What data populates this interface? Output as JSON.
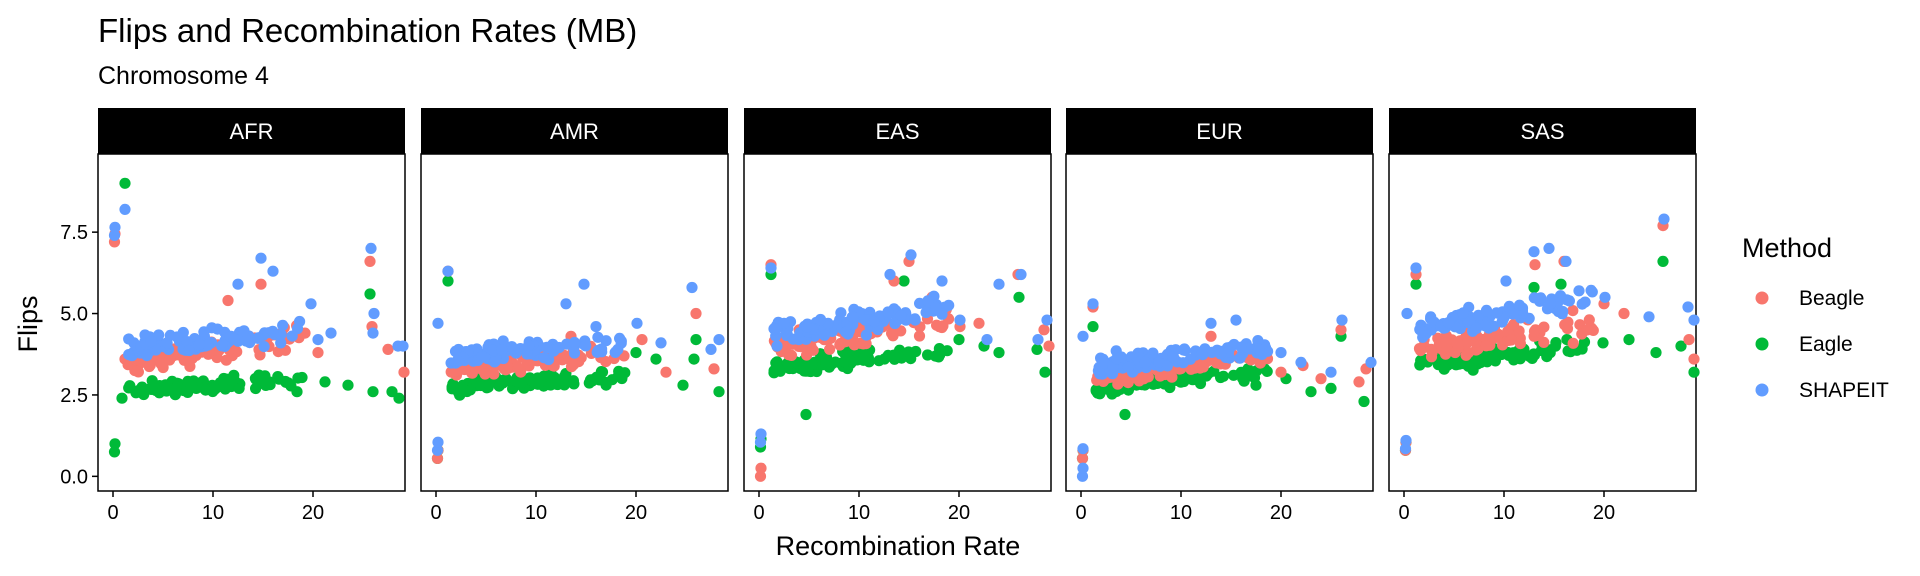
{
  "chart_data": {
    "type": "scatter",
    "title": "Flips and Recombination Rates (MB)",
    "subtitle": "Chromosome 4",
    "xlabel": "Recombination Rate",
    "ylabel": "Flips",
    "xlim": [
      -1.5,
      29.2
    ],
    "ylim": [
      -0.45,
      9.9
    ],
    "x_ticks": [
      0,
      10,
      20
    ],
    "x_tick_labels": [
      "0",
      "10",
      "20"
    ],
    "y_ticks": [
      0,
      2.5,
      5,
      7.5
    ],
    "y_tick_labels": [
      "0.0",
      "2.5",
      "5.0",
      "7.5"
    ],
    "grid": false,
    "legend_position": "right",
    "legend_title": "Method",
    "facets": [
      "AFR",
      "AMR",
      "EAS",
      "EUR",
      "SAS"
    ],
    "series": [
      {
        "name": "Beagle",
        "color": "#F8766D"
      },
      {
        "name": "Eagle",
        "color": "#00BA38"
      },
      {
        "name": "SHAPEIT",
        "color": "#619CFF"
      }
    ],
    "facet_params": {
      "AFR": {
        "Beagle": {
          "base": 3.4,
          "slope": 0.05,
          "spread": 0.35,
          "lowpt": 7.2,
          "extra": [
            [
              1.2,
              3.6
            ],
            [
              11.5,
              5.4
            ],
            [
              14.8,
              5.9
            ],
            [
              25.7,
              6.6
            ],
            [
              25.9,
              4.6
            ],
            [
              29.1,
              3.2
            ],
            [
              27.5,
              3.9
            ],
            [
              20.5,
              3.8
            ],
            [
              19.2,
              4.4
            ]
          ]
        },
        "Eagle": {
          "base": 2.6,
          "slope": 0.02,
          "spread": 0.22,
          "lowpt": 0.75,
          "extra": [
            [
              1.2,
              9.0
            ],
            [
              0.9,
              2.4
            ],
            [
              25.7,
              5.6
            ],
            [
              27.9,
              2.6
            ],
            [
              28.6,
              2.4
            ],
            [
              23.5,
              2.8
            ],
            [
              26.0,
              2.6
            ],
            [
              21.2,
              2.9
            ],
            [
              18.4,
              2.6
            ]
          ]
        },
        "SHAPEIT": {
          "base": 3.9,
          "slope": 0.03,
          "spread": 0.35,
          "lowpt": 7.4,
          "extra": [
            [
              1.2,
              8.2
            ],
            [
              12.5,
              5.9
            ],
            [
              14.8,
              6.7
            ],
            [
              16.0,
              6.3
            ],
            [
              25.8,
              7.0
            ],
            [
              26.1,
              5.0
            ],
            [
              26.0,
              4.4
            ],
            [
              28.5,
              4.0
            ],
            [
              29.0,
              4.0
            ],
            [
              20.5,
              4.2
            ],
            [
              21.8,
              4.4
            ],
            [
              19.8,
              5.3
            ]
          ]
        }
      },
      "AMR": {
        "Beagle": {
          "base": 3.2,
          "slope": 0.03,
          "spread": 0.3,
          "lowpt": 0.55,
          "extra": [
            [
              1.2,
              6.3
            ],
            [
              26.0,
              5.0
            ],
            [
              27.8,
              3.3
            ],
            [
              23.0,
              3.2
            ],
            [
              20.6,
              4.2
            ],
            [
              18.8,
              3.7
            ],
            [
              13.5,
              4.3
            ]
          ]
        },
        "Eagle": {
          "base": 2.7,
          "slope": 0.02,
          "spread": 0.22,
          "lowpt": 0.55,
          "extra": [
            [
              1.2,
              6.0
            ],
            [
              26.0,
              4.2
            ],
            [
              28.3,
              2.6
            ],
            [
              24.7,
              2.8
            ],
            [
              20.0,
              3.8
            ],
            [
              22.0,
              3.6
            ],
            [
              25.8,
              3.6
            ]
          ]
        },
        "SHAPEIT": {
          "base": 3.7,
          "slope": 0.02,
          "spread": 0.3,
          "lowpt": 0.8,
          "extra": [
            [
              1.2,
              6.3
            ],
            [
              0.2,
              4.7
            ],
            [
              14.8,
              5.9
            ],
            [
              13.0,
              5.3
            ],
            [
              25.6,
              5.8
            ],
            [
              28.3,
              4.2
            ],
            [
              20.1,
              4.7
            ],
            [
              22.5,
              4.1
            ],
            [
              27.5,
              3.9
            ],
            [
              16.0,
              4.6
            ]
          ]
        }
      },
      "EAS": {
        "Beagle": {
          "base": 3.9,
          "slope": 0.05,
          "spread": 0.35,
          "lowpt": 0.0,
          "extra": [
            [
              1.2,
              6.5
            ],
            [
              15.0,
              6.6
            ],
            [
              13.5,
              6.0
            ],
            [
              25.9,
              6.2
            ],
            [
              17.3,
              5.5
            ],
            [
              20.1,
              4.6
            ],
            [
              22.0,
              4.7
            ],
            [
              28.5,
              4.5
            ],
            [
              29.0,
              4.0
            ]
          ]
        },
        "Eagle": {
          "base": 3.3,
          "slope": 0.03,
          "spread": 0.25,
          "lowpt": 0.9,
          "extra": [
            [
              1.2,
              6.2
            ],
            [
              14.5,
              6.0
            ],
            [
              4.7,
              1.9
            ],
            [
              26.0,
              5.5
            ],
            [
              28.6,
              3.2
            ],
            [
              27.8,
              3.9
            ],
            [
              24.0,
              3.8
            ],
            [
              22.5,
              4.0
            ],
            [
              20.0,
              4.2
            ]
          ]
        },
        "SHAPEIT": {
          "base": 4.3,
          "slope": 0.05,
          "spread": 0.4,
          "lowpt": 1.05,
          "extra": [
            [
              1.2,
              6.4
            ],
            [
              15.2,
              6.8
            ],
            [
              13.1,
              6.2
            ],
            [
              26.2,
              6.2
            ],
            [
              24.0,
              5.9
            ],
            [
              18.3,
              6.0
            ],
            [
              20.1,
              4.8
            ],
            [
              28.8,
              4.8
            ],
            [
              27.9,
              4.2
            ],
            [
              22.8,
              4.2
            ]
          ]
        }
      },
      "EUR": {
        "Beagle": {
          "base": 3.0,
          "slope": 0.04,
          "spread": 0.27,
          "lowpt": 0.55,
          "extra": [
            [
              1.2,
              5.2
            ],
            [
              13.0,
              4.3
            ],
            [
              14.8,
              3.9
            ],
            [
              26.0,
              4.5
            ],
            [
              28.5,
              3.3
            ],
            [
              27.8,
              2.9
            ],
            [
              20.0,
              3.2
            ],
            [
              22.2,
              3.4
            ],
            [
              24.0,
              3.0
            ]
          ]
        },
        "Eagle": {
          "base": 2.7,
          "slope": 0.03,
          "spread": 0.22,
          "lowpt": 0.55,
          "extra": [
            [
              1.2,
              4.6
            ],
            [
              4.4,
              1.9
            ],
            [
              26.0,
              4.3
            ],
            [
              28.3,
              2.3
            ],
            [
              23.0,
              2.6
            ],
            [
              25.0,
              2.7
            ],
            [
              20.5,
              3.0
            ],
            [
              17.5,
              2.8
            ]
          ]
        },
        "SHAPEIT": {
          "base": 3.3,
          "slope": 0.04,
          "spread": 0.28,
          "lowpt": 0.0,
          "extra": [
            [
              1.2,
              5.3
            ],
            [
              0.2,
              4.3
            ],
            [
              0.2,
              0.85
            ],
            [
              13.0,
              4.7
            ],
            [
              15.5,
              4.8
            ],
            [
              26.1,
              4.8
            ],
            [
              29.0,
              3.5
            ],
            [
              20.0,
              3.8
            ],
            [
              22.0,
              3.5
            ],
            [
              25.0,
              3.2
            ],
            [
              17.8,
              3.9
            ]
          ]
        }
      },
      "SAS": {
        "Beagle": {
          "base": 3.8,
          "slope": 0.05,
          "spread": 0.35,
          "lowpt": 0.8,
          "extra": [
            [
              1.2,
              6.2
            ],
            [
              13.1,
              6.5
            ],
            [
              16.0,
              6.6
            ],
            [
              25.9,
              7.7
            ],
            [
              28.5,
              4.2
            ],
            [
              29.0,
              3.6
            ],
            [
              22.0,
              5.0
            ],
            [
              20.0,
              5.3
            ]
          ]
        },
        "Eagle": {
          "base": 3.3,
          "slope": 0.04,
          "spread": 0.25,
          "lowpt": 0.8,
          "extra": [
            [
              1.2,
              5.9
            ],
            [
              13.0,
              5.8
            ],
            [
              15.7,
              5.9
            ],
            [
              25.9,
              6.6
            ],
            [
              29.0,
              3.2
            ],
            [
              27.7,
              4.0
            ],
            [
              25.2,
              3.8
            ],
            [
              22.5,
              4.2
            ],
            [
              19.9,
              4.1
            ]
          ]
        },
        "SHAPEIT": {
          "base": 4.4,
          "slope": 0.06,
          "spread": 0.35,
          "lowpt": 0.85,
          "extra": [
            [
              1.2,
              6.4
            ],
            [
              0.3,
              5.0
            ],
            [
              13.0,
              6.9
            ],
            [
              14.5,
              7.0
            ],
            [
              16.2,
              6.6
            ],
            [
              26.0,
              7.9
            ],
            [
              29.0,
              4.8
            ],
            [
              28.4,
              5.2
            ],
            [
              24.5,
              4.9
            ],
            [
              20.1,
              5.5
            ],
            [
              17.5,
              5.7
            ],
            [
              10.2,
              6.0
            ]
          ]
        }
      }
    }
  }
}
